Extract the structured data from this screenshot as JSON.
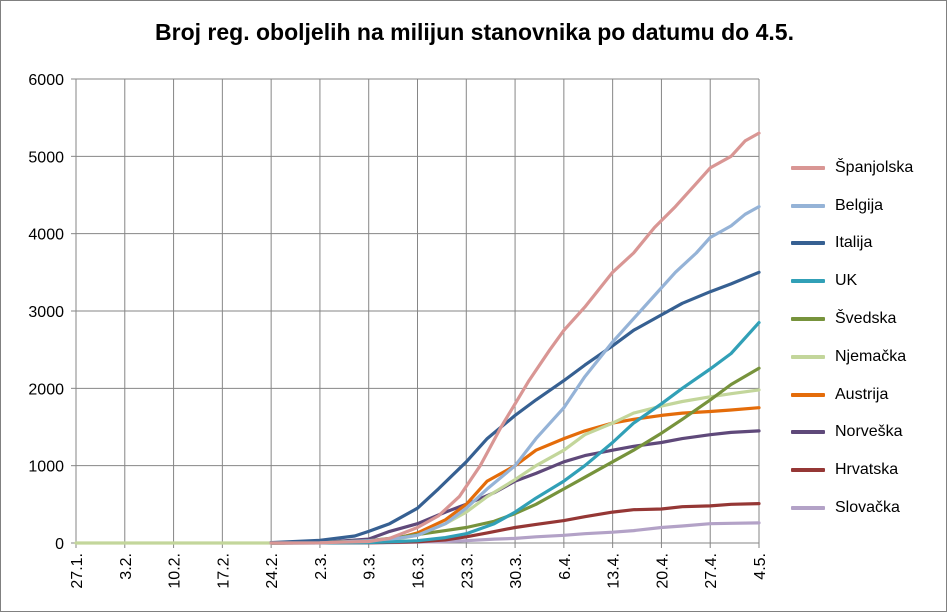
{
  "title": "Broj reg. oboljelih na milijun stanovnika po datumu do 4.5.",
  "colors": {
    "grid": "#868686",
    "axis": "#868686"
  },
  "chart_data": {
    "type": "line",
    "title": "Broj reg. oboljelih na milijun stanovnika po datumu do 4.5.",
    "xlabel": "",
    "ylabel": "",
    "ylim": [
      0,
      6000
    ],
    "yticks": [
      0,
      1000,
      2000,
      3000,
      4000,
      5000,
      6000
    ],
    "x_start": "27.1.",
    "x_end": "4.5.",
    "x_tick_labels": [
      "27.1.",
      "3.2.",
      "10.2.",
      "17.2.",
      "24.2.",
      "2.3.",
      "9.3.",
      "16.3.",
      "23.3.",
      "30.3.",
      "6.4.",
      "13.4.",
      "20.4.",
      "27.4.",
      "4.5."
    ],
    "grid": true,
    "legend_position": "right",
    "series": [
      {
        "name": "Španjolska",
        "color": "#d99694",
        "points": [
          [
            "24.2.",
            0
          ],
          [
            "2.3.",
            2
          ],
          [
            "5.3.",
            10
          ],
          [
            "9.3.",
            20
          ],
          [
            "12.3.",
            60
          ],
          [
            "16.3.",
            200
          ],
          [
            "19.3.",
            350
          ],
          [
            "22.3.",
            600
          ],
          [
            "25.3.",
            1000
          ],
          [
            "28.3.",
            1500
          ],
          [
            "30.3.",
            1800
          ],
          [
            "1.4.",
            2100
          ],
          [
            "4.4.",
            2500
          ],
          [
            "6.4.",
            2750
          ],
          [
            "9.4.",
            3050
          ],
          [
            "13.4.",
            3500
          ],
          [
            "16.4.",
            3750
          ],
          [
            "19.4.",
            4080
          ],
          [
            "22.4.",
            4350
          ],
          [
            "25.4.",
            4650
          ],
          [
            "27.4.",
            4850
          ],
          [
            "30.4.",
            5000
          ],
          [
            "2.5.",
            5200
          ],
          [
            "4.5.",
            5300
          ]
        ]
      },
      {
        "name": "Belgija",
        "color": "#95b3d7",
        "points": [
          [
            "24.2.",
            0
          ],
          [
            "2.3.",
            2
          ],
          [
            "9.3.",
            30
          ],
          [
            "13.3.",
            60
          ],
          [
            "16.3.",
            100
          ],
          [
            "20.3.",
            250
          ],
          [
            "23.3.",
            450
          ],
          [
            "26.3.",
            700
          ],
          [
            "30.3.",
            1000
          ],
          [
            "2.4.",
            1350
          ],
          [
            "6.4.",
            1750
          ],
          [
            "9.4.",
            2150
          ],
          [
            "13.4.",
            2600
          ],
          [
            "16.4.",
            2900
          ],
          [
            "19.4.",
            3200
          ],
          [
            "22.4.",
            3500
          ],
          [
            "25.4.",
            3750
          ],
          [
            "27.4.",
            3950
          ],
          [
            "30.4.",
            4100
          ],
          [
            "2.5.",
            4250
          ],
          [
            "4.5.",
            4350
          ]
        ]
      },
      {
        "name": "Italija",
        "color": "#366092",
        "points": [
          [
            "24.2.",
            5
          ],
          [
            "2.3.",
            35
          ],
          [
            "7.3.",
            90
          ],
          [
            "9.3.",
            150
          ],
          [
            "12.3.",
            250
          ],
          [
            "16.3.",
            450
          ],
          [
            "19.3.",
            700
          ],
          [
            "23.3.",
            1050
          ],
          [
            "26.3.",
            1350
          ],
          [
            "30.3.",
            1650
          ],
          [
            "2.4.",
            1850
          ],
          [
            "6.4.",
            2100
          ],
          [
            "9.4.",
            2300
          ],
          [
            "13.4.",
            2550
          ],
          [
            "16.4.",
            2750
          ],
          [
            "20.4.",
            2950
          ],
          [
            "23.4.",
            3100
          ],
          [
            "27.4.",
            3250
          ],
          [
            "30.4.",
            3350
          ],
          [
            "4.5.",
            3500
          ]
        ]
      },
      {
        "name": "UK",
        "color": "#31a0b7",
        "points": [
          [
            "24.2.",
            0
          ],
          [
            "2.3.",
            1
          ],
          [
            "9.3.",
            5
          ],
          [
            "16.3.",
            30
          ],
          [
            "20.3.",
            70
          ],
          [
            "23.3.",
            120
          ],
          [
            "27.3.",
            250
          ],
          [
            "30.3.",
            400
          ],
          [
            "2.4.",
            580
          ],
          [
            "6.4.",
            800
          ],
          [
            "9.4.",
            1000
          ],
          [
            "13.4.",
            1300
          ],
          [
            "16.4.",
            1550
          ],
          [
            "20.4.",
            1800
          ],
          [
            "23.4.",
            2000
          ],
          [
            "27.4.",
            2250
          ],
          [
            "30.4.",
            2450
          ],
          [
            "4.5.",
            2850
          ]
        ]
      },
      {
        "name": "Švedska",
        "color": "#77933c",
        "points": [
          [
            "24.2.",
            0
          ],
          [
            "2.3.",
            5
          ],
          [
            "9.3.",
            30
          ],
          [
            "13.3.",
            70
          ],
          [
            "16.3.",
            110
          ],
          [
            "20.3.",
            160
          ],
          [
            "23.3.",
            200
          ],
          [
            "27.3.",
            280
          ],
          [
            "30.3.",
            380
          ],
          [
            "2.4.",
            500
          ],
          [
            "6.4.",
            700
          ],
          [
            "9.4.",
            850
          ],
          [
            "13.4.",
            1050
          ],
          [
            "16.4.",
            1200
          ],
          [
            "20.4.",
            1420
          ],
          [
            "23.4.",
            1600
          ],
          [
            "27.4.",
            1850
          ],
          [
            "30.4.",
            2050
          ],
          [
            "4.5.",
            2260
          ]
        ]
      },
      {
        "name": "Njemačka",
        "color": "#c3d69b",
        "points": [
          [
            "27.1.",
            0
          ],
          [
            "24.2.",
            0
          ],
          [
            "2.3.",
            5
          ],
          [
            "9.3.",
            20
          ],
          [
            "13.3.",
            50
          ],
          [
            "16.3.",
            100
          ],
          [
            "20.3.",
            250
          ],
          [
            "23.3.",
            400
          ],
          [
            "26.3.",
            600
          ],
          [
            "30.3.",
            820
          ],
          [
            "2.4.",
            1000
          ],
          [
            "6.4.",
            1200
          ],
          [
            "9.4.",
            1400
          ],
          [
            "13.4.",
            1550
          ],
          [
            "16.4.",
            1680
          ],
          [
            "20.4.",
            1770
          ],
          [
            "23.4.",
            1830
          ],
          [
            "27.4.",
            1890
          ],
          [
            "30.4.",
            1930
          ],
          [
            "4.5.",
            1980
          ]
        ]
      },
      {
        "name": "Austrija",
        "color": "#e46c0a",
        "points": [
          [
            "24.2.",
            0
          ],
          [
            "2.3.",
            2
          ],
          [
            "9.3.",
            20
          ],
          [
            "13.3.",
            60
          ],
          [
            "16.3.",
            130
          ],
          [
            "20.3.",
            300
          ],
          [
            "23.3.",
            500
          ],
          [
            "26.3.",
            800
          ],
          [
            "30.3.",
            1000
          ],
          [
            "2.4.",
            1200
          ],
          [
            "6.4.",
            1350
          ],
          [
            "9.4.",
            1450
          ],
          [
            "13.4.",
            1550
          ],
          [
            "16.4.",
            1600
          ],
          [
            "20.4.",
            1650
          ],
          [
            "23.4.",
            1680
          ],
          [
            "27.4.",
            1700
          ],
          [
            "30.4.",
            1720
          ],
          [
            "4.5.",
            1750
          ]
        ]
      },
      {
        "name": "Norveška",
        "color": "#5f497a",
        "points": [
          [
            "24.2.",
            0
          ],
          [
            "2.3.",
            5
          ],
          [
            "9.3.",
            50
          ],
          [
            "12.3.",
            150
          ],
          [
            "16.3.",
            250
          ],
          [
            "20.3.",
            400
          ],
          [
            "23.3.",
            500
          ],
          [
            "27.3.",
            650
          ],
          [
            "30.3.",
            800
          ],
          [
            "2.4.",
            900
          ],
          [
            "6.4.",
            1050
          ],
          [
            "9.4.",
            1130
          ],
          [
            "13.4.",
            1200
          ],
          [
            "16.4.",
            1250
          ],
          [
            "20.4.",
            1300
          ],
          [
            "23.4.",
            1350
          ],
          [
            "27.4.",
            1400
          ],
          [
            "30.4.",
            1430
          ],
          [
            "4.5.",
            1450
          ]
        ]
      },
      {
        "name": "Hrvatska",
        "color": "#953735",
        "points": [
          [
            "24.2.",
            0
          ],
          [
            "2.3.",
            1
          ],
          [
            "9.3.",
            3
          ],
          [
            "16.3.",
            15
          ],
          [
            "20.3.",
            40
          ],
          [
            "23.3.",
            80
          ],
          [
            "26.3.",
            130
          ],
          [
            "30.3.",
            200
          ],
          [
            "2.4.",
            240
          ],
          [
            "6.4.",
            290
          ],
          [
            "9.4.",
            340
          ],
          [
            "13.4.",
            400
          ],
          [
            "16.4.",
            430
          ],
          [
            "20.4.",
            440
          ],
          [
            "23.4.",
            470
          ],
          [
            "27.4.",
            480
          ],
          [
            "30.4.",
            500
          ],
          [
            "4.5.",
            510
          ]
        ]
      },
      {
        "name": "Slovačka",
        "color": "#b3a2c7",
        "points": [
          [
            "24.2.",
            0
          ],
          [
            "2.3.",
            0
          ],
          [
            "9.3.",
            1
          ],
          [
            "16.3.",
            10
          ],
          [
            "20.3.",
            20
          ],
          [
            "23.3.",
            30
          ],
          [
            "27.3.",
            50
          ],
          [
            "30.3.",
            60
          ],
          [
            "2.4.",
            80
          ],
          [
            "6.4.",
            100
          ],
          [
            "9.4.",
            120
          ],
          [
            "13.4.",
            140
          ],
          [
            "16.4.",
            160
          ],
          [
            "20.4.",
            200
          ],
          [
            "23.4.",
            220
          ],
          [
            "27.4.",
            250
          ],
          [
            "30.4.",
            255
          ],
          [
            "4.5.",
            260
          ]
        ]
      }
    ]
  }
}
